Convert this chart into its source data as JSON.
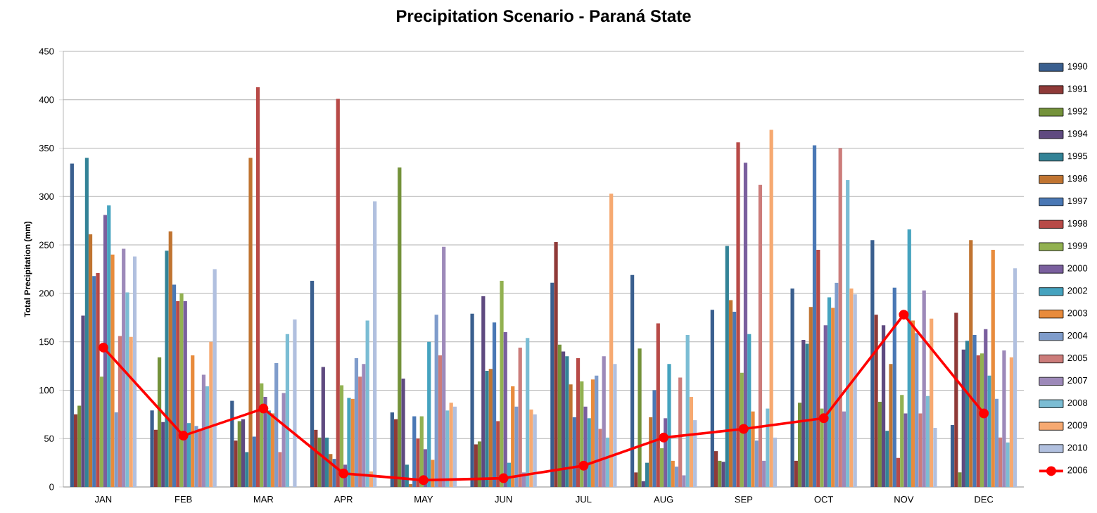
{
  "chart_data": {
    "type": "bar",
    "title": "Precipitation Scenario - Paraná State",
    "ylabel": "Total Precipitation (mm)",
    "categories": [
      "JAN",
      "FEB",
      "MAR",
      "APR",
      "MAY",
      "JUN",
      "JUL",
      "AUG",
      "SEP",
      "OCT",
      "NOV",
      "DEC"
    ],
    "ylim": [
      0,
      450
    ],
    "yticks": [
      0,
      50,
      100,
      150,
      200,
      250,
      300,
      350,
      400,
      450
    ],
    "grid": "y",
    "legend": "right",
    "series": [
      {
        "name": "1990",
        "color": "#3a5f8f",
        "values": [
          334,
          79,
          89,
          213,
          77,
          179,
          211,
          219,
          183,
          205,
          255,
          64
        ]
      },
      {
        "name": "1991",
        "color": "#8f3a38",
        "values": [
          75,
          59,
          48,
          59,
          70,
          44,
          253,
          15,
          37,
          27,
          178,
          180
        ]
      },
      {
        "name": "1992",
        "color": "#74923a",
        "values": [
          84,
          134,
          68,
          51,
          330,
          47,
          147,
          143,
          27,
          87,
          88,
          15
        ]
      },
      {
        "name": "1994",
        "color": "#5f4a80",
        "values": [
          177,
          67,
          70,
          124,
          112,
          197,
          140,
          6,
          26,
          152,
          167,
          142
        ]
      },
      {
        "name": "1995",
        "color": "#338397",
        "values": [
          340,
          244,
          36,
          51,
          23,
          120,
          135,
          25,
          249,
          148,
          58,
          151
        ]
      },
      {
        "name": "1996",
        "color": "#c07431",
        "values": [
          261,
          264,
          340,
          34,
          3,
          122,
          106,
          72,
          193,
          186,
          127,
          255
        ]
      },
      {
        "name": "1997",
        "color": "#4a78b5",
        "values": [
          218,
          209,
          52,
          29,
          73,
          170,
          72,
          100,
          181,
          353,
          206,
          157
        ]
      },
      {
        "name": "1998",
        "color": "#b84a47",
        "values": [
          221,
          192,
          413,
          401,
          50,
          68,
          133,
          169,
          356,
          245,
          30,
          136
        ]
      },
      {
        "name": "1999",
        "color": "#92b151",
        "values": [
          114,
          200,
          107,
          105,
          73,
          213,
          109,
          40,
          118,
          81,
          95,
          138
        ]
      },
      {
        "name": "2000",
        "color": "#7a5f9e",
        "values": [
          281,
          192,
          93,
          23,
          39,
          160,
          83,
          71,
          335,
          167,
          76,
          163
        ]
      },
      {
        "name": "2002",
        "color": "#45a3bf",
        "values": [
          291,
          66,
          79,
          92,
          150,
          25,
          71,
          127,
          158,
          196,
          266,
          115
        ]
      },
      {
        "name": "2003",
        "color": "#e88b3c",
        "values": [
          240,
          136,
          76,
          91,
          28,
          104,
          111,
          27,
          78,
          185,
          172,
          245
        ]
      },
      {
        "name": "2004",
        "color": "#7f9ccb",
        "values": [
          77,
          63,
          128,
          133,
          178,
          83,
          115,
          21,
          48,
          211,
          159,
          91
        ]
      },
      {
        "name": "2005",
        "color": "#cc7c7a",
        "values": [
          156,
          60,
          36,
          114,
          136,
          144,
          60,
          113,
          312,
          350,
          76,
          51
        ]
      },
      {
        "name": "2007",
        "color": "#9d89b9",
        "values": [
          246,
          116,
          97,
          127,
          248,
          15,
          135,
          12,
          27,
          78,
          203,
          141
        ]
      },
      {
        "name": "2008",
        "color": "#7bbdd4",
        "values": [
          201,
          104,
          158,
          172,
          79,
          154,
          51,
          157,
          81,
          317,
          94,
          46
        ]
      },
      {
        "name": "2009",
        "color": "#f6a971",
        "values": [
          155,
          150,
          0,
          16,
          87,
          80,
          303,
          93,
          369,
          205,
          174,
          134
        ]
      },
      {
        "name": "2010",
        "color": "#b1c0df",
        "values": [
          238,
          225,
          173,
          295,
          83,
          75,
          127,
          69,
          51,
          199,
          61,
          226
        ]
      },
      {
        "name": "2006",
        "type": "line",
        "marker": "circle",
        "color": "#ff0000",
        "values": [
          144,
          53,
          81,
          14,
          7,
          9,
          22,
          51,
          60,
          71,
          178,
          76
        ]
      }
    ]
  }
}
